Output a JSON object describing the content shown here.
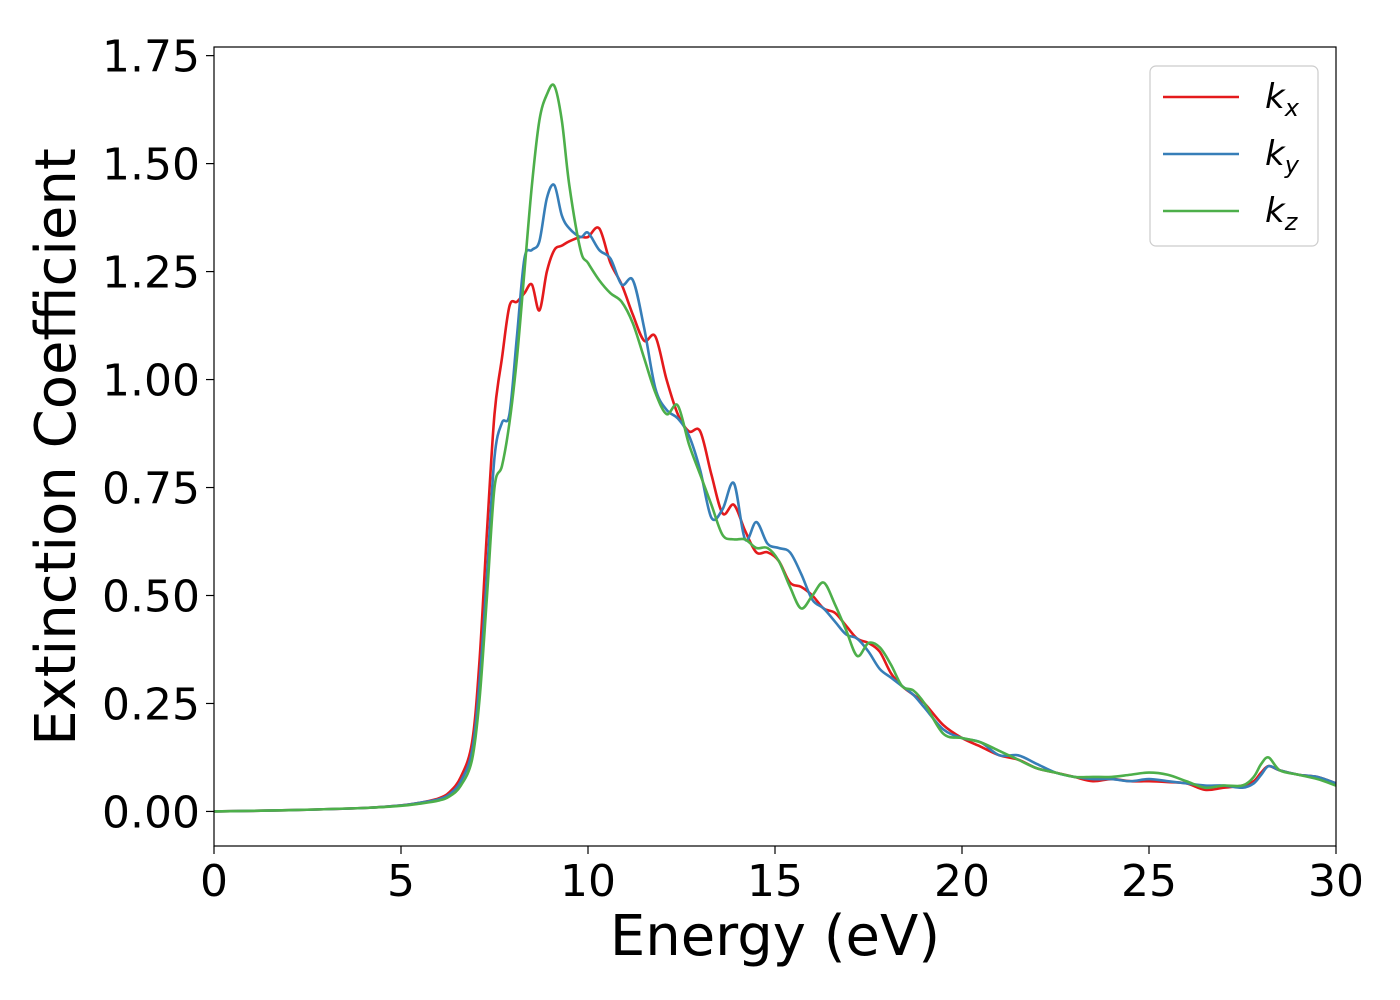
{
  "chart_data": {
    "type": "line",
    "xlabel": "Energy (eV)",
    "ylabel": "Extinction Coefficient",
    "xlim": [
      0,
      30
    ],
    "ylim": [
      -0.08,
      1.77
    ],
    "x_ticks": [
      "0",
      "5",
      "10",
      "15",
      "20",
      "25",
      "30"
    ],
    "y_ticks": [
      "0.00",
      "0.25",
      "0.50",
      "0.75",
      "1.00",
      "1.25",
      "1.50",
      "1.75"
    ],
    "grid": false,
    "legend_position": "top-right",
    "series": [
      {
        "name": "k",
        "subscript": "x",
        "color": "#e41a1c",
        "x": [
          0,
          2,
          4,
          5,
          5.5,
          6,
          6.3,
          6.6,
          6.9,
          7.1,
          7.3,
          7.5,
          7.7,
          7.9,
          8.1,
          8.3,
          8.5,
          8.7,
          8.9,
          9.1,
          9.3,
          9.5,
          9.8,
          10.0,
          10.3,
          10.6,
          10.9,
          11.2,
          11.5,
          11.8,
          12.1,
          12.4,
          12.7,
          13.0,
          13.3,
          13.6,
          13.9,
          14.2,
          14.5,
          14.8,
          15.1,
          15.4,
          15.7,
          16.0,
          16.3,
          16.6,
          16.9,
          17.2,
          17.5,
          17.8,
          18.1,
          18.4,
          18.7,
          19.0,
          19.5,
          20.0,
          20.5,
          21.0,
          21.5,
          22.0,
          22.5,
          23.0,
          23.5,
          24.0,
          24.5,
          25.0,
          25.5,
          26.0,
          26.5,
          27.0,
          27.5,
          27.8,
          28.0,
          28.2,
          28.5,
          29.0,
          29.5,
          30.0
        ],
        "values": [
          0.0,
          0.003,
          0.008,
          0.014,
          0.02,
          0.03,
          0.045,
          0.08,
          0.16,
          0.35,
          0.65,
          0.92,
          1.05,
          1.17,
          1.18,
          1.2,
          1.22,
          1.16,
          1.25,
          1.3,
          1.31,
          1.32,
          1.33,
          1.33,
          1.35,
          1.27,
          1.22,
          1.15,
          1.09,
          1.1,
          1.0,
          0.92,
          0.88,
          0.88,
          0.78,
          0.69,
          0.71,
          0.65,
          0.6,
          0.6,
          0.58,
          0.53,
          0.52,
          0.5,
          0.47,
          0.46,
          0.43,
          0.4,
          0.39,
          0.37,
          0.32,
          0.29,
          0.27,
          0.25,
          0.2,
          0.17,
          0.15,
          0.13,
          0.12,
          0.1,
          0.09,
          0.08,
          0.07,
          0.075,
          0.07,
          0.07,
          0.068,
          0.065,
          0.05,
          0.055,
          0.06,
          0.07,
          0.09,
          0.105,
          0.095,
          0.085,
          0.08,
          0.065
        ]
      },
      {
        "name": "k",
        "subscript": "y",
        "color": "#377eb8",
        "x": [
          0,
          2,
          4,
          5,
          5.5,
          6,
          6.3,
          6.6,
          6.9,
          7.1,
          7.3,
          7.5,
          7.7,
          7.9,
          8.1,
          8.3,
          8.5,
          8.7,
          8.9,
          9.1,
          9.3,
          9.5,
          9.8,
          10.0,
          10.3,
          10.6,
          10.9,
          11.2,
          11.5,
          11.8,
          12.1,
          12.4,
          12.7,
          13.0,
          13.3,
          13.6,
          13.9,
          14.2,
          14.5,
          14.8,
          15.1,
          15.4,
          15.7,
          16.0,
          16.3,
          16.6,
          16.9,
          17.2,
          17.5,
          17.8,
          18.1,
          18.4,
          18.7,
          19.0,
          19.5,
          20.0,
          20.5,
          21.0,
          21.5,
          22.0,
          22.5,
          23.0,
          23.5,
          24.0,
          24.5,
          25.0,
          25.5,
          26.0,
          26.5,
          27.0,
          27.5,
          27.8,
          28.0,
          28.2,
          28.5,
          29.0,
          29.5,
          30.0
        ],
        "values": [
          0.0,
          0.003,
          0.008,
          0.014,
          0.02,
          0.028,
          0.04,
          0.07,
          0.14,
          0.3,
          0.55,
          0.82,
          0.9,
          0.92,
          1.1,
          1.28,
          1.3,
          1.32,
          1.42,
          1.45,
          1.38,
          1.35,
          1.33,
          1.34,
          1.3,
          1.28,
          1.22,
          1.23,
          1.12,
          0.98,
          0.93,
          0.91,
          0.87,
          0.79,
          0.68,
          0.7,
          0.76,
          0.63,
          0.67,
          0.62,
          0.61,
          0.6,
          0.55,
          0.49,
          0.47,
          0.44,
          0.41,
          0.4,
          0.37,
          0.33,
          0.31,
          0.29,
          0.27,
          0.24,
          0.19,
          0.17,
          0.16,
          0.13,
          0.13,
          0.11,
          0.09,
          0.08,
          0.075,
          0.075,
          0.07,
          0.075,
          0.07,
          0.065,
          0.06,
          0.06,
          0.055,
          0.065,
          0.085,
          0.105,
          0.095,
          0.085,
          0.08,
          0.065
        ]
      },
      {
        "name": "k",
        "subscript": "z",
        "color": "#4daf4a",
        "x": [
          0,
          2,
          4,
          5,
          5.5,
          6,
          6.3,
          6.6,
          6.9,
          7.1,
          7.3,
          7.5,
          7.7,
          7.9,
          8.1,
          8.3,
          8.5,
          8.7,
          8.9,
          9.1,
          9.3,
          9.5,
          9.8,
          10.0,
          10.3,
          10.6,
          10.9,
          11.2,
          11.5,
          11.8,
          12.1,
          12.4,
          12.7,
          13.0,
          13.3,
          13.6,
          13.9,
          14.2,
          14.5,
          14.8,
          15.1,
          15.4,
          15.7,
          16.0,
          16.3,
          16.6,
          16.9,
          17.2,
          17.5,
          17.8,
          18.1,
          18.4,
          18.7,
          19.0,
          19.5,
          20.0,
          20.5,
          21.0,
          21.5,
          22.0,
          22.5,
          23.0,
          23.5,
          24.0,
          24.5,
          25.0,
          25.5,
          26.0,
          26.5,
          27.0,
          27.5,
          27.8,
          28.0,
          28.2,
          28.5,
          29.0,
          29.5,
          30.0
        ],
        "values": [
          0.0,
          0.003,
          0.008,
          0.013,
          0.018,
          0.025,
          0.035,
          0.06,
          0.12,
          0.26,
          0.5,
          0.75,
          0.8,
          0.9,
          1.05,
          1.25,
          1.45,
          1.6,
          1.66,
          1.68,
          1.6,
          1.45,
          1.3,
          1.27,
          1.23,
          1.2,
          1.18,
          1.13,
          1.05,
          0.97,
          0.92,
          0.94,
          0.85,
          0.78,
          0.71,
          0.64,
          0.63,
          0.63,
          0.61,
          0.61,
          0.58,
          0.52,
          0.47,
          0.5,
          0.53,
          0.48,
          0.42,
          0.36,
          0.39,
          0.38,
          0.34,
          0.29,
          0.28,
          0.25,
          0.18,
          0.17,
          0.16,
          0.14,
          0.12,
          0.1,
          0.09,
          0.08,
          0.08,
          0.08,
          0.085,
          0.09,
          0.085,
          0.07,
          0.055,
          0.06,
          0.06,
          0.08,
          0.11,
          0.125,
          0.095,
          0.085,
          0.075,
          0.06
        ]
      }
    ]
  }
}
